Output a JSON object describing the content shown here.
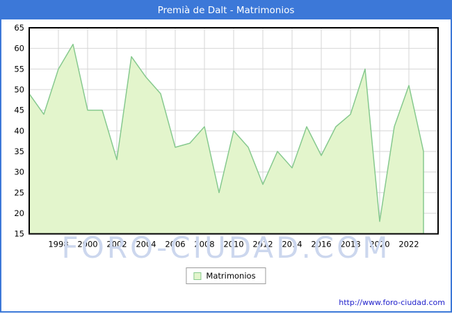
{
  "window": {
    "title": "Premià de Dalt - Matrimonios"
  },
  "chart_data": {
    "type": "area",
    "title": "Premià de Dalt - Matrimonios",
    "series_name": "Matrimonios",
    "x": [
      1996,
      1997,
      1998,
      1999,
      2000,
      2001,
      2002,
      2003,
      2004,
      2005,
      2006,
      2007,
      2008,
      2009,
      2010,
      2011,
      2012,
      2013,
      2014,
      2015,
      2016,
      2017,
      2018,
      2019,
      2020,
      2021,
      2022,
      2023
    ],
    "values": [
      49,
      44,
      55,
      61,
      45,
      45,
      33,
      58,
      53,
      49,
      36,
      37,
      41,
      25,
      40,
      36,
      27,
      35,
      31,
      41,
      34,
      41,
      44,
      55,
      18,
      41,
      51,
      35
    ],
    "xlim": [
      1996,
      2024
    ],
    "ylim": [
      15,
      65
    ],
    "x_ticks": [
      1998,
      2000,
      2002,
      2004,
      2006,
      2008,
      2010,
      2012,
      2014,
      2016,
      2018,
      2020,
      2022
    ],
    "y_ticks": [
      65,
      60,
      55,
      50,
      45,
      40,
      35,
      30,
      25,
      20,
      15
    ],
    "grid": true,
    "legend_position": "bottom-center",
    "xlabel": "",
    "ylabel": ""
  },
  "legend": {
    "label": "Matrimonios"
  },
  "watermark": "FORO-CIUDAD.COM",
  "footer": {
    "link": "http://www.foro-ciudad.com"
  },
  "colors": {
    "accent": "#3c78d8",
    "series_fill": "#e3f5cc",
    "series_stroke": "#86c98e",
    "grid": "#d6d6d6",
    "plot_border": "#000000",
    "axis_text": "#000000",
    "watermark": "#ccd7ee",
    "link": "#2222cc"
  }
}
